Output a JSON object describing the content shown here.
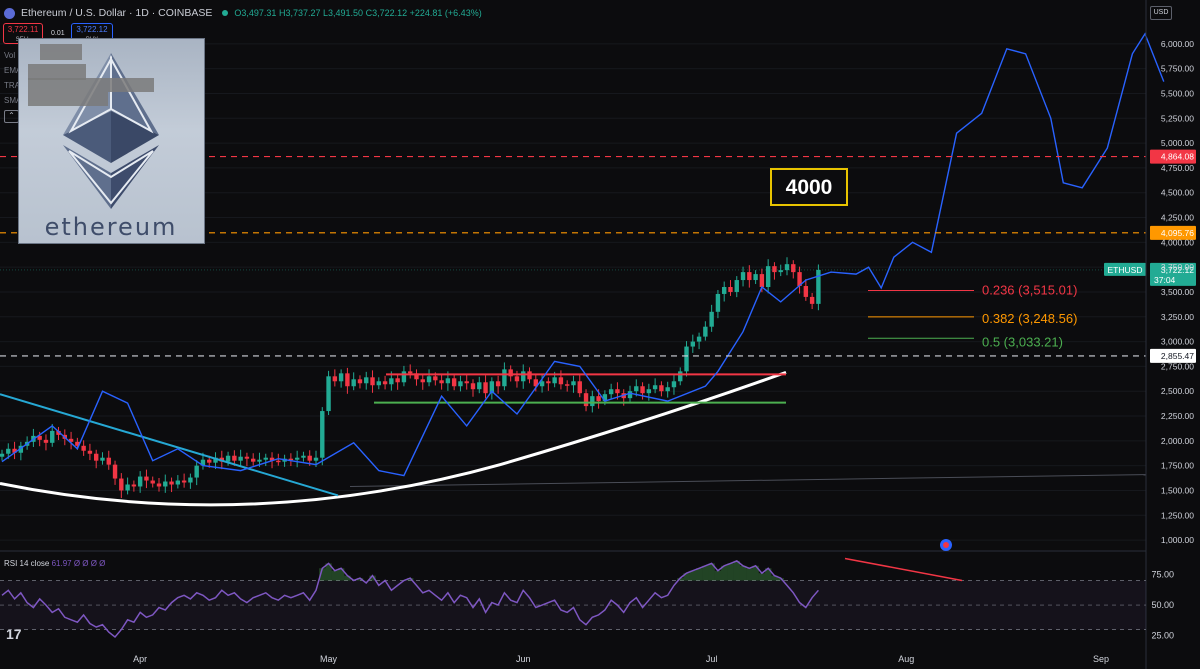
{
  "header": {
    "symbol_title": "Ethereum / U.S. Dollar · 1D · COINBASE",
    "open": "O3,497.31",
    "high": "H3,737.27",
    "low": "L3,491.50",
    "close": "C3,722.12",
    "change": "+224.81 (+6.43%)"
  },
  "trade": {
    "sell_price": "3,722.11",
    "sell_label": "SELL",
    "spread": "0.01",
    "buy_price": "3,722.12",
    "buy_label": "BUY"
  },
  "indicators": [
    "Vol",
    "EMA",
    "TRA",
    "SMA"
  ],
  "logo_text": "ethereum",
  "currency": "USD",
  "annotation_box": "4000",
  "symbol_tag": "ETHUSD",
  "price_tag": "3,722.12",
  "countdown": "37:04",
  "rsi_label": "RSI 14 close",
  "rsi_values": "61.97 Ø Ø Ø Ø",
  "colors": {
    "up": "#22ab94",
    "down": "#f23645",
    "forecast": "#2962ff",
    "rsi": "#7e57c2",
    "level_red": "#f23645",
    "level_orange": "#ff9800",
    "level_white": "#d1d4dc"
  },
  "chart_data": {
    "type": "candlestick",
    "title": "Ethereum / U.S. Dollar · 1D · COINBASE",
    "ylim": [
      900,
      6200
    ],
    "y_ticks": [
      1000,
      1250,
      1500,
      1750,
      2000,
      2250,
      2500,
      2750,
      3000,
      3250,
      3500,
      3750,
      4000,
      4250,
      4500,
      4750,
      5000,
      5250,
      5500,
      5750,
      6000
    ],
    "y_tick_labels": [
      "1,000.00",
      "1,250.00",
      "1,500.00",
      "1,750.00",
      "2,000.00",
      "2,250.00",
      "2,500.00",
      "2,750.00",
      "3,000.00",
      "3,250.00",
      "3,500.00",
      "3,750.00",
      "4,000.00",
      "4,250.00",
      "4,500.00",
      "4,750.00",
      "5,000.00",
      "5,250.00",
      "5,500.00",
      "5,750.00",
      "6,000.00"
    ],
    "x_labels": [
      "Apr",
      "May",
      "Jun",
      "Jul",
      "Aug",
      "Sep"
    ],
    "x_label_index": [
      22,
      52,
      83,
      113,
      144,
      175
    ],
    "candles_close": [
      1870,
      1920,
      1880,
      1950,
      1990,
      2050,
      2010,
      1980,
      2100,
      2060,
      2020,
      1990,
      1950,
      1900,
      1870,
      1800,
      1830,
      1760,
      1620,
      1500,
      1560,
      1540,
      1640,
      1600,
      1570,
      1540,
      1590,
      1560,
      1600,
      1580,
      1630,
      1750,
      1810,
      1780,
      1830,
      1790,
      1850,
      1800,
      1840,
      1820,
      1790,
      1810,
      1830,
      1800,
      1790,
      1820,
      1810,
      1830,
      1850,
      1800,
      1830,
      2300,
      2650,
      2600,
      2680,
      2550,
      2620,
      2580,
      2640,
      2560,
      2600,
      2570,
      2630,
      2590,
      2700,
      2680,
      2620,
      2590,
      2650,
      2610,
      2580,
      2630,
      2550,
      2600,
      2580,
      2520,
      2590,
      2480,
      2600,
      2550,
      2720,
      2650,
      2600,
      2700,
      2620,
      2550,
      2600,
      2580,
      2640,
      2570,
      2560,
      2600,
      2480,
      2350,
      2450,
      2400,
      2470,
      2520,
      2480,
      2430,
      2500,
      2550,
      2480,
      2520,
      2560,
      2500,
      2540,
      2600,
      2700,
      2950,
      3000,
      3050,
      3150,
      3300,
      3480,
      3550,
      3500,
      3620,
      3700,
      3620,
      3680,
      3550,
      3760,
      3700,
      3720,
      3780,
      3700,
      3560,
      3450,
      3380,
      3722
    ],
    "forecast": [
      [
        0,
        1790
      ],
      [
        8,
        2150
      ],
      [
        12,
        1920
      ],
      [
        16,
        2500
      ],
      [
        20,
        2380
      ],
      [
        24,
        1800
      ],
      [
        28,
        1920
      ],
      [
        32,
        1750
      ],
      [
        38,
        1700
      ],
      [
        44,
        1820
      ],
      [
        50,
        1760
      ],
      [
        56,
        1980
      ],
      [
        60,
        1700
      ],
      [
        64,
        1650
      ],
      [
        70,
        2450
      ],
      [
        74,
        2150
      ],
      [
        78,
        2500
      ],
      [
        82,
        2270
      ],
      [
        88,
        2800
      ],
      [
        92,
        2750
      ],
      [
        96,
        2400
      ],
      [
        100,
        2480
      ],
      [
        106,
        2400
      ],
      [
        112,
        2550
      ],
      [
        114,
        2700
      ],
      [
        118,
        3100
      ],
      [
        121,
        3550
      ],
      [
        124,
        3400
      ],
      [
        128,
        3620
      ],
      [
        132,
        3700
      ],
      [
        136,
        3680
      ],
      [
        138,
        3750
      ],
      [
        140,
        3540
      ],
      [
        142,
        3850
      ],
      [
        145,
        4000
      ],
      [
        148,
        3900
      ],
      [
        152,
        5100
      ],
      [
        156,
        5300
      ],
      [
        160,
        5950
      ],
      [
        163,
        5900
      ],
      [
        167,
        5250
      ],
      [
        169,
        4600
      ],
      [
        172,
        4550
      ],
      [
        176,
        4950
      ],
      [
        180,
        5900
      ],
      [
        182,
        6100
      ],
      [
        185,
        5620
      ]
    ],
    "horizontal_levels": [
      {
        "price": 4864.08,
        "label": "4,864.08",
        "color": "red"
      },
      {
        "price": 4095.76,
        "label": "4,095.76",
        "color": "orange"
      },
      {
        "price": 2855.47,
        "label": "2,855.47",
        "color": "white"
      }
    ],
    "fib_levels": [
      {
        "ratio": "0.236",
        "price": 3515.01,
        "text": "0.236 (3,515.01)"
      },
      {
        "ratio": "0.382",
        "price": 3248.56,
        "text": "0.382 (3,248.56)"
      },
      {
        "ratio": "0.5",
        "price": 3033.21,
        "text": "0.5 (3,033.21)"
      }
    ],
    "resistance_range": [
      2670,
      2385
    ],
    "rsi": {
      "ylim": [
        15,
        90
      ],
      "ticks": [
        25,
        50,
        75
      ],
      "tick_labels": [
        "25.00",
        "50.00",
        "75.00"
      ],
      "values": [
        58,
        62,
        55,
        60,
        52,
        48,
        55,
        50,
        44,
        47,
        40,
        38,
        36,
        42,
        35,
        32,
        34,
        28,
        24,
        30,
        38,
        36,
        44,
        40,
        42,
        48,
        46,
        52,
        56,
        58,
        55,
        60,
        58,
        54,
        56,
        62,
        58,
        60,
        55,
        52,
        56,
        58,
        60,
        56,
        54,
        58,
        56,
        58,
        60,
        54,
        62,
        80,
        84,
        78,
        80,
        74,
        70,
        72,
        68,
        74,
        66,
        70,
        62,
        66,
        70,
        72,
        66,
        60,
        62,
        58,
        54,
        60,
        52,
        58,
        56,
        48,
        55,
        44,
        52,
        50,
        60,
        54,
        52,
        62,
        56,
        48,
        50,
        52,
        54,
        46,
        44,
        48,
        38,
        34,
        40,
        42,
        46,
        54,
        50,
        44,
        52,
        56,
        48,
        54,
        60,
        56,
        58,
        66,
        72,
        76,
        78,
        80,
        82,
        84,
        78,
        82,
        84,
        86,
        82,
        80,
        82,
        76,
        80,
        74,
        72,
        66,
        60,
        52,
        48,
        56,
        62
      ]
    }
  }
}
